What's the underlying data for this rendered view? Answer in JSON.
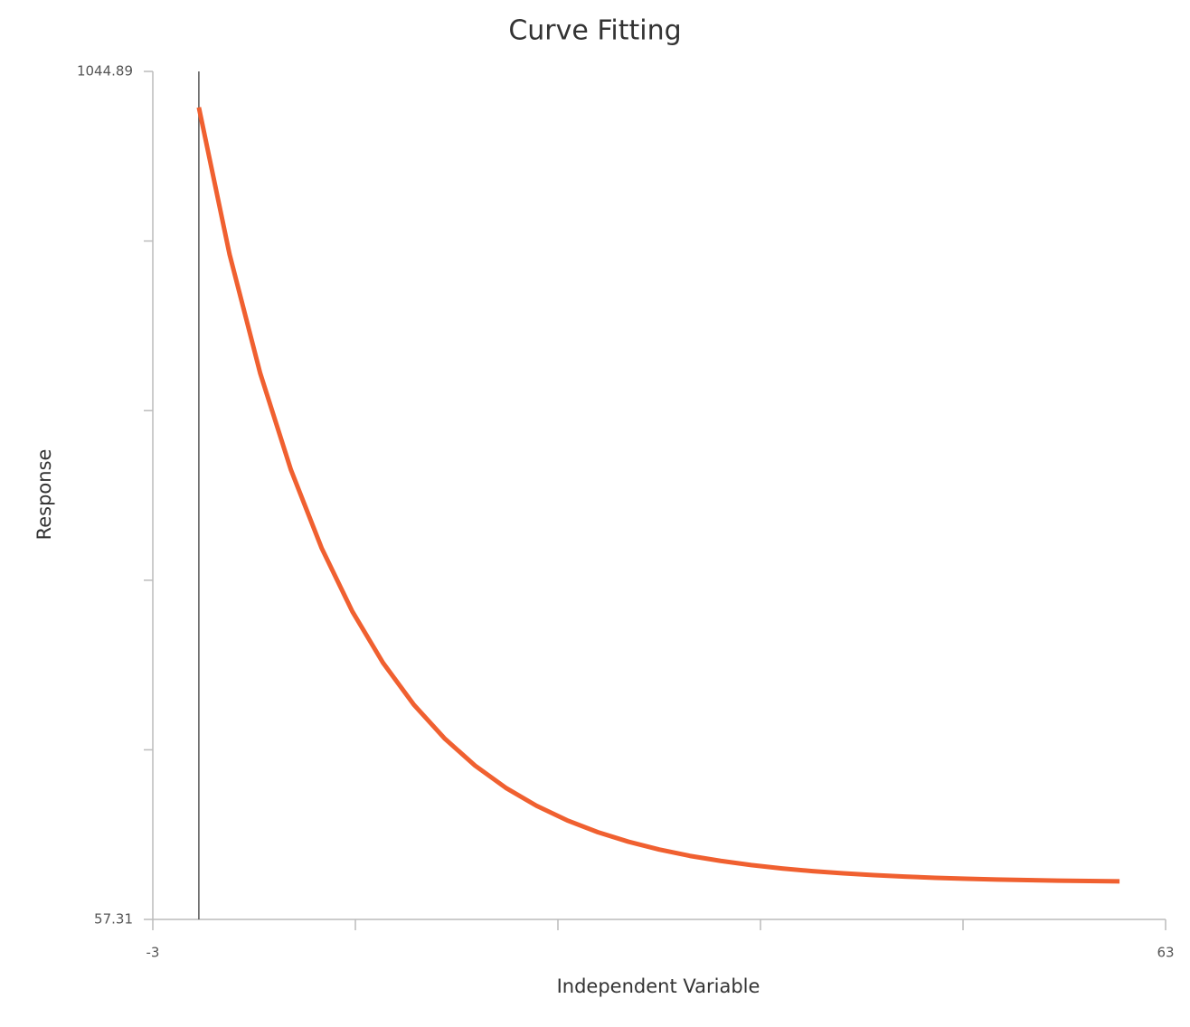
{
  "chart_data": {
    "type": "line",
    "title": "Curve Fitting",
    "x_label": "Independent Variable",
    "y_label": "Response",
    "x": [
      0,
      2,
      4,
      6,
      8,
      10,
      12,
      14,
      16,
      18,
      20,
      22,
      24,
      26,
      28,
      30,
      32,
      34,
      36,
      38,
      40,
      42,
      44,
      46,
      48,
      50,
      52,
      54,
      56,
      58,
      60
    ],
    "values": [
      1003,
      831.9,
      693.3,
      580.9,
      489.8,
      416.0,
      356.2,
      307.6,
      268.3,
      236.4,
      210.6,
      189.7,
      172.7,
      158.9,
      147.8,
      138.7,
      131.3,
      125.5,
      120.6,
      116.7,
      113.5,
      111.0,
      108.9,
      107.2,
      105.8,
      104.7,
      103.8,
      103.1,
      102.5,
      102.0,
      101.7
    ],
    "color": "#f06030",
    "xlim": [
      -3,
      63
    ],
    "xticks": [
      -3,
      63
    ],
    "xminorticks": [
      10.2,
      23.4,
      36.6,
      49.8
    ],
    "ylim": [
      57.31,
      1044.89
    ],
    "yticks": [
      57.31,
      1044.89
    ],
    "yminorticks": [
      254.826,
      452.342,
      649.858,
      847.374
    ],
    "vline": 0
  }
}
